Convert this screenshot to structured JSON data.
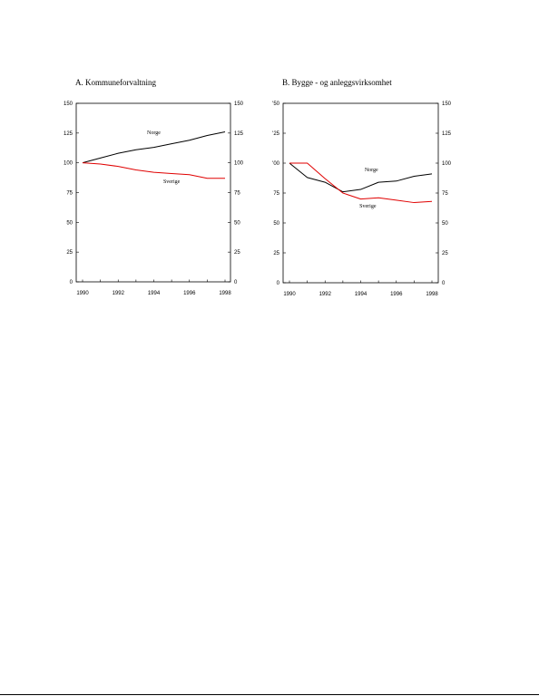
{
  "chart_data": [
    {
      "type": "line",
      "title": "A. Kommuneforvaltning",
      "xlabel": "",
      "ylabel": "",
      "x": [
        1990,
        1991,
        1992,
        1993,
        1994,
        1995,
        1996,
        1997,
        1998
      ],
      "xticks": [
        "1990",
        "1992",
        "1994",
        "1996",
        "1998"
      ],
      "xlim": [
        1990,
        1998
      ],
      "ylim": [
        0,
        150
      ],
      "yticks": [
        "0",
        "25",
        "50",
        "75",
        "100",
        "125",
        "150"
      ],
      "grid": false,
      "series": [
        {
          "name": "Norge",
          "color": "#000000",
          "values": [
            100,
            104,
            108,
            111,
            113,
            116,
            119,
            123,
            126
          ],
          "label_at": [
            1994.0,
            124
          ]
        },
        {
          "name": "Sverige",
          "color": "#e00000",
          "values": [
            100,
            99,
            97,
            94,
            92,
            91,
            90,
            87,
            87
          ],
          "label_at": [
            1995.0,
            83
          ]
        }
      ]
    },
    {
      "type": "line",
      "title": "B. Bygge - og anleggsvirksomhet",
      "xlabel": "",
      "ylabel": "",
      "x": [
        1990,
        1991,
        1992,
        1993,
        1994,
        1995,
        1996,
        1997,
        1998
      ],
      "xticks": [
        "1990",
        "1992",
        "1994",
        "1996",
        "1998"
      ],
      "xlim": [
        1990,
        1998
      ],
      "ylim": [
        0,
        150
      ],
      "yticks": [
        "0",
        "25",
        "50",
        "75",
        "100",
        "125",
        "150"
      ],
      "left_ytick_labels": [
        "0",
        "25",
        "50",
        "75",
        "'00",
        "'25",
        "'50"
      ],
      "grid": false,
      "series": [
        {
          "name": "Norge",
          "color": "#000000",
          "values": [
            100,
            88,
            84,
            76,
            78,
            84,
            85,
            89,
            91
          ],
          "label_at": [
            1994.6,
            93
          ]
        },
        {
          "name": "Sverige",
          "color": "#e00000",
          "values": [
            100,
            100,
            87,
            75,
            70,
            71,
            69,
            67,
            68
          ],
          "label_at": [
            1994.4,
            63
          ]
        }
      ]
    }
  ]
}
